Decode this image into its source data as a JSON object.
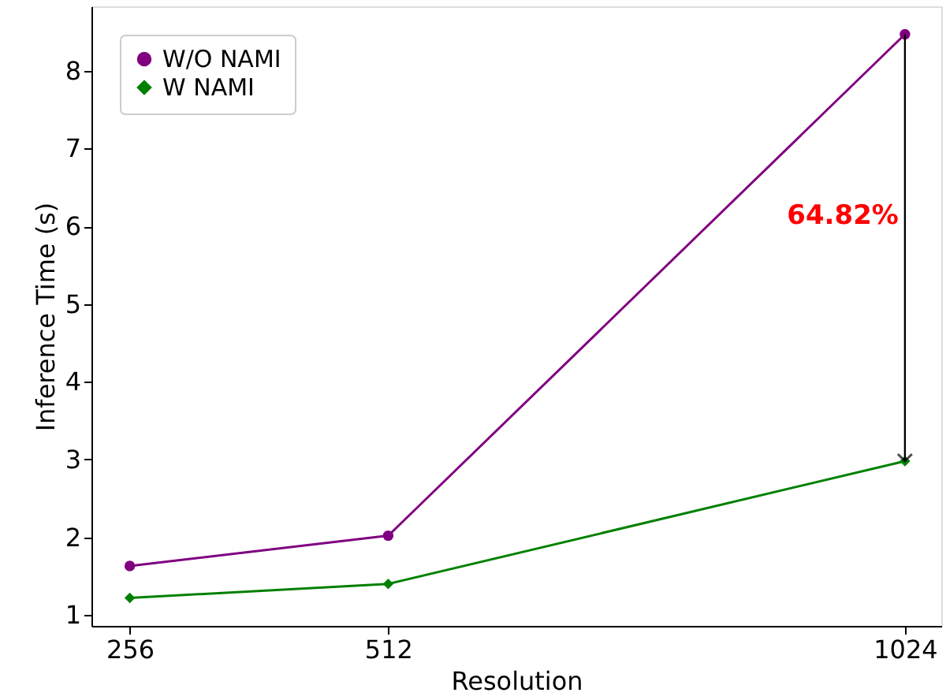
{
  "chart_data": {
    "type": "line",
    "xlabel": "Resolution",
    "ylabel": "Inference Time (s)",
    "x": [
      256,
      512,
      1024
    ],
    "series": [
      {
        "name": "W/O NAMI",
        "color": "#800080",
        "values": [
          1.63,
          2.02,
          8.47
        ],
        "marker": "circle"
      },
      {
        "name": "W NAMI",
        "color": "#008000",
        "values": [
          1.22,
          1.4,
          2.98
        ],
        "marker": "diamond"
      }
    ],
    "xlim": [
      218,
      1060
    ],
    "xticks": [
      256,
      512,
      {
        "value": 1024,
        "label": "1024"
      }
    ],
    "ylim": [
      0.86,
      8.83
    ],
    "yticks": [
      1,
      2,
      3,
      4,
      5,
      6,
      7,
      8
    ],
    "annotations": [
      "64.82%"
    ],
    "grid": false,
    "legend": "top left",
    "line_style": "solid"
  }
}
